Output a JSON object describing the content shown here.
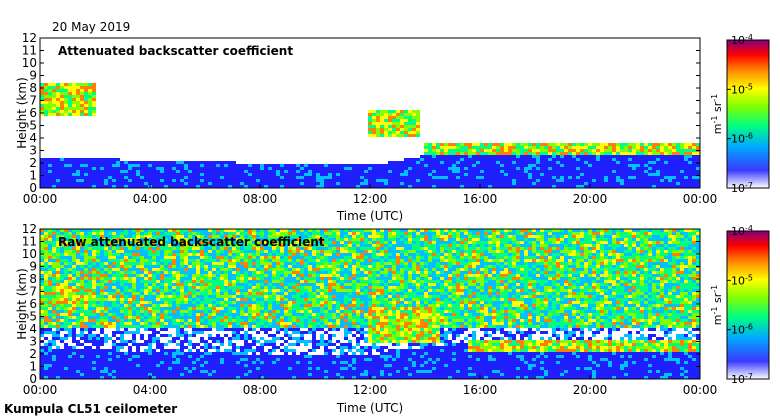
{
  "header": {
    "date": "20 May 2019"
  },
  "footer": {
    "instrument": "Kumpula CL51 ceilometer"
  },
  "colors": {
    "scale": [
      "#ffffff",
      "#2020ff",
      "#00c0ff",
      "#00ff80",
      "#80ff00",
      "#ffff00",
      "#ff8000",
      "#ff0000",
      "#800080"
    ]
  },
  "chart_data": [
    {
      "type": "heatmap",
      "title": "Attenuated backscatter coefficient",
      "xlabel": "Time (UTC)",
      "ylabel": "Height (km)",
      "xticks": [
        "00:00",
        "04:00",
        "08:00",
        "12:00",
        "16:00",
        "20:00",
        "00:00"
      ],
      "xlim": [
        0,
        24
      ],
      "yticks": [
        "0",
        "1",
        "2",
        "3",
        "4",
        "5",
        "6",
        "7",
        "8",
        "9",
        "10",
        "11",
        "12"
      ],
      "ylim": [
        0,
        12
      ],
      "colorbar": {
        "ticks": [
          "10",
          "10",
          "10",
          "10"
        ],
        "exponents": [
          "-7",
          "-6",
          "-5",
          "-4"
        ],
        "label_base": [
          "m",
          "sr"
        ],
        "label_exp": [
          "-1",
          "-1"
        ],
        "range": [
          1e-07,
          0.0001
        ],
        "log": true
      },
      "features": {
        "boundary_layer_top_km": [
          [
            0,
            2.5
          ],
          [
            4,
            2.2
          ],
          [
            8,
            2.0
          ],
          [
            12,
            1.8
          ],
          [
            14,
            2.6
          ],
          [
            16,
            3.0
          ],
          [
            18,
            2.8
          ],
          [
            20,
            2.7
          ],
          [
            24,
            3.0
          ]
        ],
        "cloud_layers": [
          {
            "t_start": 0.0,
            "t_end": 2.0,
            "h_bottom": 5.8,
            "h_top": 8.5
          },
          {
            "t_start": 12.0,
            "t_end": 13.8,
            "h_bottom": 4.0,
            "h_top": 6.2
          },
          {
            "t_start": 14.0,
            "t_end": 24.0,
            "h_bottom": 2.6,
            "h_top": 3.6
          }
        ]
      }
    },
    {
      "type": "heatmap",
      "title": "Raw attenuated backscatter coefficient",
      "xlabel": "Time (UTC)",
      "ylabel": "Height (km)",
      "xticks": [
        "00:00",
        "04:00",
        "08:00",
        "12:00",
        "16:00",
        "20:00",
        "00:00"
      ],
      "xlim": [
        0,
        24
      ],
      "yticks": [
        "0",
        "1",
        "2",
        "3",
        "4",
        "5",
        "6",
        "7",
        "8",
        "9",
        "10",
        "11",
        "12"
      ],
      "ylim": [
        0,
        12
      ],
      "colorbar": {
        "ticks": [
          "10",
          "10",
          "10",
          "10"
        ],
        "exponents": [
          "-7",
          "-6",
          "-5",
          "-4"
        ],
        "label_base": [
          "m",
          "sr"
        ],
        "label_exp": [
          "-1",
          "-1"
        ],
        "range": [
          1e-07,
          0.0001
        ],
        "log": true
      },
      "features": {
        "noise_level": "high above 4 km",
        "cloud_layers": [
          {
            "t_start": 0.0,
            "t_end": 2.0,
            "h_bottom": 5.8,
            "h_top": 7.5
          },
          {
            "t_start": 12.0,
            "t_end": 14.5,
            "h_bottom": 3.0,
            "h_top": 5.8
          },
          {
            "t_start": 15.5,
            "t_end": 24.0,
            "h_bottom": 2.2,
            "h_top": 3.2
          }
        ]
      }
    }
  ]
}
